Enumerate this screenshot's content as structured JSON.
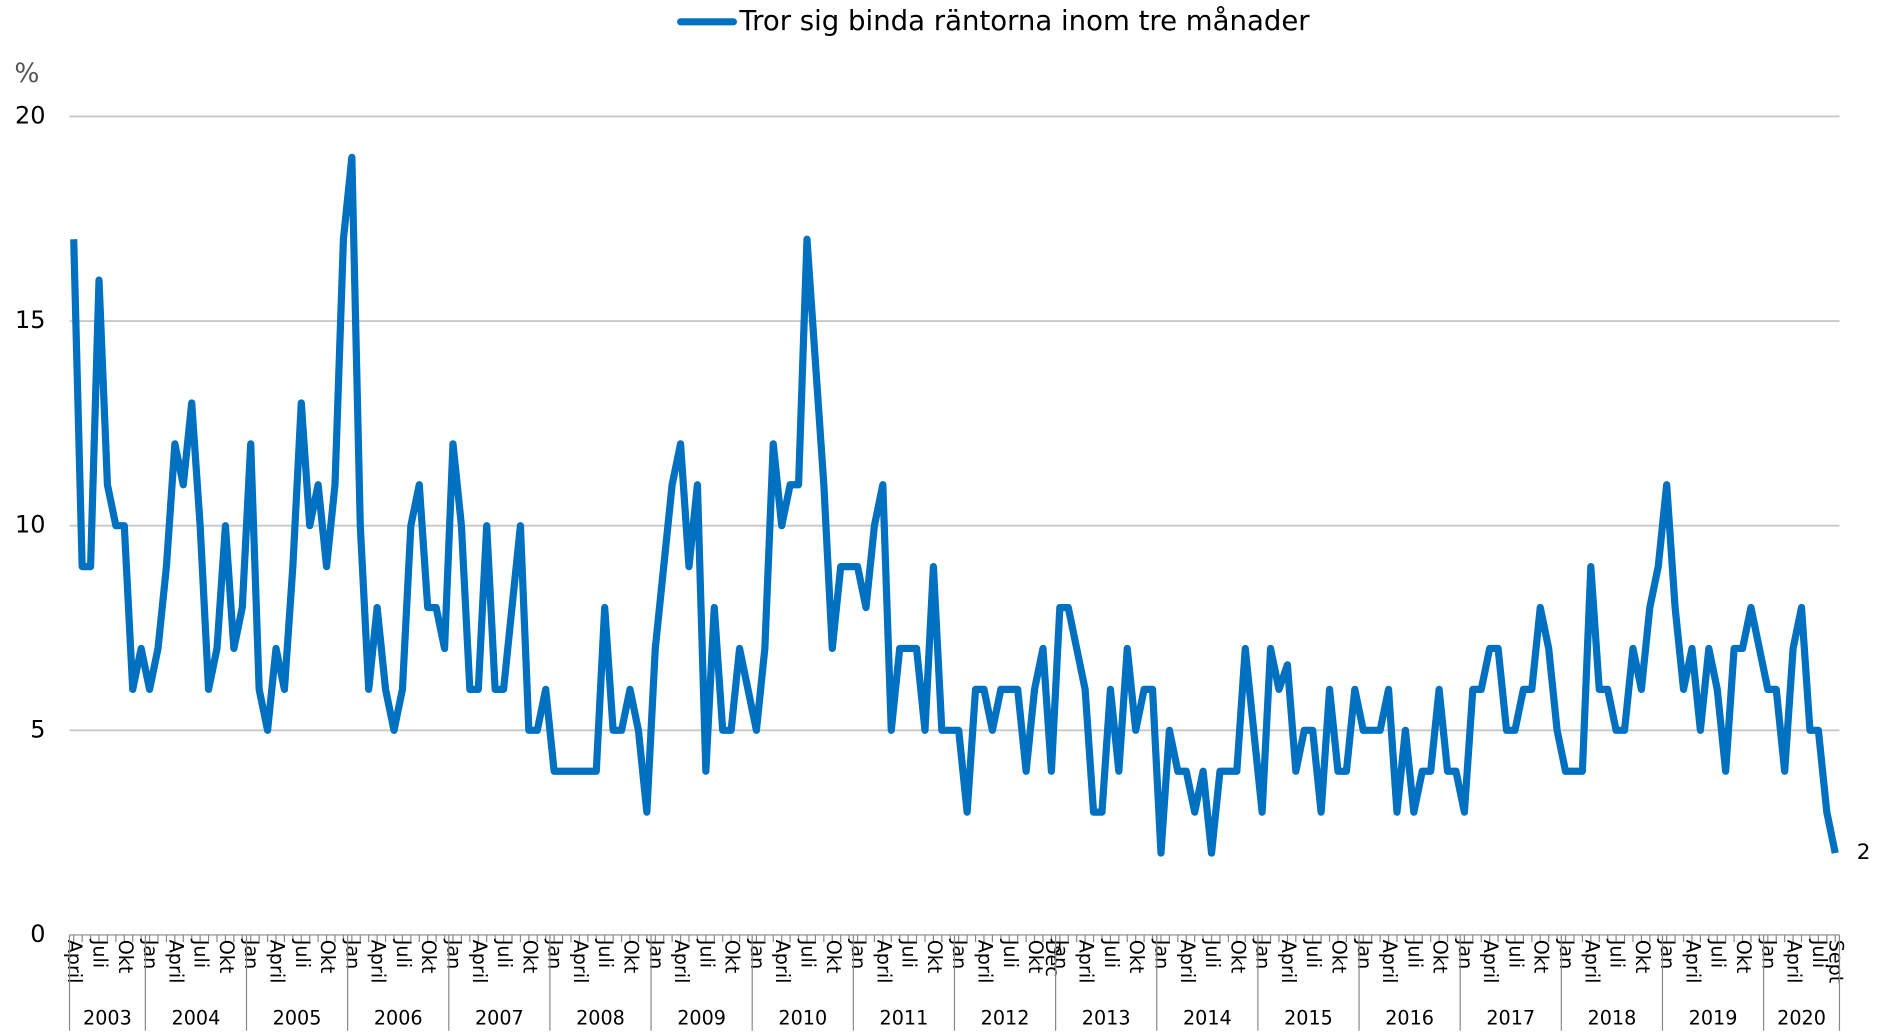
{
  "chart_data": {
    "type": "line",
    "y_label": "%",
    "categories": [
      "April",
      null,
      null,
      "Juli",
      null,
      null,
      "Okt",
      null,
      null,
      "Jan",
      null,
      null,
      "April",
      null,
      null,
      "Juli",
      null,
      null,
      "Okt",
      null,
      null,
      "Jan",
      null,
      null,
      "April",
      null,
      null,
      "Juli",
      null,
      null,
      "Okt",
      null,
      null,
      "Jan",
      null,
      null,
      "April",
      null,
      null,
      "Juli",
      null,
      null,
      "Okt",
      null,
      null,
      "Jan",
      null,
      null,
      "April",
      null,
      null,
      "Juli",
      null,
      null,
      "Okt",
      null,
      null,
      "Jan",
      null,
      null,
      "April",
      null,
      null,
      "Juli",
      null,
      null,
      "Okt",
      null,
      null,
      "Jan",
      null,
      null,
      "April",
      null,
      null,
      "Juli",
      null,
      null,
      "Okt",
      null,
      null,
      "Jan",
      null,
      null,
      "April",
      null,
      null,
      "Juli",
      null,
      null,
      "Okt",
      null,
      null,
      "Jan",
      null,
      null,
      "April",
      null,
      null,
      "Juli",
      null,
      null,
      "Okt",
      null,
      null,
      "Jan",
      null,
      null,
      "April",
      null,
      null,
      "Juli",
      null,
      null,
      "Okt",
      null,
      "Dec",
      "Jan",
      null,
      null,
      "April",
      null,
      null,
      "Juli",
      null,
      null,
      "Okt",
      null,
      null,
      "Jan",
      null,
      null,
      "April",
      null,
      null,
      "Juli",
      null,
      null,
      "Okt",
      null,
      null,
      "Jan",
      null,
      null,
      "April",
      null,
      null,
      "Juli",
      null,
      null,
      "Okt",
      null,
      null,
      "Jan",
      null,
      null,
      "April",
      null,
      null,
      "Juli",
      null,
      null,
      "Okt",
      null,
      null,
      "Jan",
      null,
      null,
      "April",
      null,
      null,
      "Juli",
      null,
      null,
      "Okt",
      null,
      null,
      "Jan",
      null,
      null,
      "April",
      null,
      null,
      "Juli",
      null,
      null,
      "Okt",
      null,
      null,
      "Jan",
      null,
      null,
      "April",
      null,
      null,
      "Juli",
      null,
      null,
      "Okt",
      null,
      null,
      "Jan",
      null,
      null,
      "April",
      null,
      null,
      "Juli",
      null,
      "Sept"
    ],
    "years": [
      "2003",
      "2004",
      "2005",
      "2006",
      "2007",
      "2008",
      "2009",
      "2010",
      "2011",
      "2012",
      "2013",
      "2014",
      "2015",
      "2016",
      "2017",
      "2018",
      "2019",
      "2020"
    ],
    "series": [
      {
        "name": "Tror sig binda räntorna inom tre månader",
        "color": "#0070c0",
        "values": [
          17,
          9,
          9,
          16,
          11,
          10,
          10,
          6,
          7,
          6,
          7,
          9,
          12,
          11,
          13,
          10,
          6,
          7,
          10,
          7,
          8,
          12,
          6,
          5,
          7,
          6,
          9,
          13,
          10,
          11,
          9,
          11,
          17,
          19,
          10,
          6,
          8,
          6,
          5,
          6,
          10,
          11,
          8,
          8,
          7,
          12,
          10,
          6,
          6,
          10,
          6,
          6,
          8,
          10,
          5,
          5,
          6,
          4,
          4,
          4,
          4,
          4,
          4,
          8,
          5,
          5,
          6,
          5,
          3,
          7,
          9,
          11,
          12,
          9,
          11,
          4,
          8,
          5,
          5,
          7,
          6,
          5,
          7,
          12,
          10,
          11,
          11,
          17,
          14,
          11,
          7,
          9,
          9,
          9,
          8,
          10,
          11,
          5,
          7,
          7,
          7,
          5,
          9,
          5,
          5,
          5,
          3,
          6,
          6,
          5,
          6,
          6,
          6,
          4,
          6,
          7,
          4,
          8,
          8,
          7,
          6,
          3,
          3,
          6,
          4,
          7,
          5,
          6,
          6,
          2,
          5,
          4,
          4,
          3,
          4,
          2,
          4,
          4,
          4,
          7,
          5,
          3,
          7,
          6,
          6.6,
          4,
          5,
          5,
          3,
          6,
          4,
          4,
          6,
          5,
          5,
          5,
          6,
          3,
          5,
          3,
          4,
          4,
          6,
          4,
          4,
          3,
          6,
          6,
          7,
          7,
          5,
          5,
          6,
          6,
          8,
          7,
          5,
          4,
          4,
          4,
          9,
          6,
          6,
          5,
          5,
          7,
          6,
          8,
          9,
          11,
          8,
          6,
          7,
          5,
          7,
          6,
          4,
          7,
          7,
          8,
          7,
          6,
          6,
          4,
          7,
          8,
          5,
          5,
          3,
          2
        ]
      }
    ],
    "ylim": [
      0,
      20
    ],
    "yticks": [
      0,
      5,
      10,
      15,
      20
    ],
    "grid": true
  }
}
